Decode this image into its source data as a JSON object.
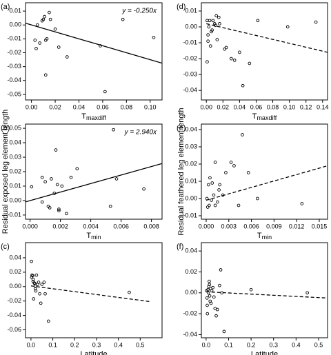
{
  "chart_data": [
    {
      "type": "scatter",
      "panel": "(a)",
      "annotation": "y = -0.250x",
      "x_label": {
        "main": "T",
        "sub": "maxdiff"
      },
      "color": "#000000",
      "x": [
        0.003,
        0.004,
        0.005,
        0.007,
        0.009,
        0.01,
        0.011,
        0.012,
        0.013,
        0.012,
        0.015,
        0.016,
        0.02,
        0.023,
        0.03,
        0.058,
        0.062,
        0.077,
        0.103
      ],
      "y": [
        -0.011,
        -0.017,
        0.0,
        -0.013,
        0.003,
        0.004,
        0.006,
        -0.011,
        -0.01,
        -0.036,
        0.009,
        0.004,
        -0.003,
        -0.016,
        -0.023,
        -0.015,
        -0.048,
        0.004,
        -0.009
      ],
      "fit": {
        "x": [
          -0.005,
          0.11
        ],
        "y": [
          0.0013,
          -0.0275
        ],
        "dashed": false
      },
      "xlim": [
        -0.005,
        0.11
      ],
      "ylim": [
        -0.054,
        0.016
      ],
      "xticks": [
        {
          "value": 0,
          "label": "0.00"
        },
        {
          "value": 0.02,
          "label": "0.02"
        },
        {
          "value": 0.04,
          "label": "0.04"
        },
        {
          "value": 0.06,
          "label": "0.06"
        },
        {
          "value": 0.08,
          "label": "0.08"
        },
        {
          "value": 0.1,
          "label": "0.10"
        }
      ],
      "yticks": [
        {
          "value": 0.01,
          "label": "0.01"
        },
        {
          "value": 0,
          "label": "0.00"
        },
        {
          "value": -0.01,
          "label": "-0.01"
        },
        {
          "value": -0.02,
          "label": "-0.02"
        },
        {
          "value": -0.03,
          "label": "-0.03"
        },
        {
          "value": -0.04,
          "label": "-0.04"
        },
        {
          "value": -0.05,
          "label": "-0.05"
        }
      ]
    },
    {
      "type": "scatter",
      "panel": "(b)",
      "annotation": "y = 2.940x",
      "x_label": {
        "main": "T",
        "sub": "min"
      },
      "ylabel": "Residual exposed leg element length",
      "color": "#000000",
      "x": [
        0.0001,
        0.0008,
        0.001,
        0.0008,
        0.0012,
        0.0013,
        0.0014,
        0.0016,
        0.0018,
        0.0017,
        0.0019,
        0.0019,
        0.0021,
        0.0024,
        0.0027,
        0.0031,
        0.0053,
        0.0055,
        0.0057,
        0.0075
      ],
      "y": [
        0.0095,
        0.016,
        0.013,
        -0.001,
        -0.004,
        -0.005,
        0.015,
        0.005,
        0.011,
        0.035,
        -0.006,
        -0.007,
        0.01,
        -0.009,
        0.016,
        0.022,
        -0.004,
        0.049,
        0.015,
        0.008
      ],
      "fit": {
        "x": [
          -0.0003,
          0.0087
        ],
        "y": [
          -0.0009,
          0.0256
        ],
        "dashed": false
      },
      "xlim": [
        -0.0003,
        0.0087
      ],
      "ylim": [
        -0.0129,
        0.0529
      ],
      "xticks": [
        {
          "value": 0,
          "label": "0.000"
        },
        {
          "value": 0.002,
          "label": "0.002"
        },
        {
          "value": 0.004,
          "label": "0.004"
        },
        {
          "value": 0.006,
          "label": "0.006"
        },
        {
          "value": 0.008,
          "label": "0.008"
        }
      ],
      "yticks": [
        {
          "value": 0.05,
          "label": "0.05"
        },
        {
          "value": 0.04,
          "label": "0.04"
        },
        {
          "value": 0.03,
          "label": "0.03"
        },
        {
          "value": 0.02,
          "label": "0.02"
        },
        {
          "value": 0.01,
          "label": "0.01"
        },
        {
          "value": 0,
          "label": "0.00"
        },
        {
          "value": -0.01,
          "label": "-0.01"
        }
      ]
    },
    {
      "type": "scatter",
      "panel": "(c)",
      "x_label": {
        "main": "Latitude"
      },
      "color": "#000000",
      "x": [
        0.002,
        0.003,
        0.005,
        0.008,
        0.01,
        0.01,
        0.012,
        0.015,
        0.018,
        0.02,
        0.02,
        0.022,
        0.025,
        0.03,
        0.035,
        0.04,
        0.045,
        0.05,
        0.06,
        0.065,
        0.08,
        0.45
      ],
      "y": [
        0.035,
        0.013,
        0.016,
        0.015,
        0.01,
        0.007,
        -0.017,
        0.005,
        0.004,
        0.001,
        -0.003,
        -0.006,
        0.016,
        0.003,
        0.006,
        -0.01,
        -0.023,
        0.003,
        0.006,
        -0.01,
        -0.048,
        -0.008
      ],
      "fit": {
        "x": [
          0,
          0.55
        ],
        "y": [
          0.001,
          -0.021
        ],
        "dashed": true
      },
      "xlim": [
        -0.025,
        0.6
      ],
      "ylim": [
        -0.071,
        0.061
      ],
      "xticks": [
        {
          "value": 0,
          "label": "0.0"
        },
        0.1,
        0.2,
        0.3,
        0.4,
        0.5
      ],
      "yticks": [
        {
          "value": 0.04,
          "label": "0.04"
        },
        {
          "value": 0.02,
          "label": "0.02"
        },
        {
          "value": 0,
          "label": "0.00"
        },
        {
          "value": -0.02,
          "label": "-0.02"
        },
        {
          "value": -0.04,
          "label": "-0.04"
        },
        {
          "value": -0.06,
          "label": "-0.06"
        }
      ]
    },
    {
      "type": "scatter",
      "panel": "(d)",
      "x_label": {
        "main": "T",
        "sub": "maxdiff"
      },
      "color": "#000000",
      "x": [
        0.001,
        0.001,
        0.002,
        0.002,
        0.003,
        0.004,
        0.005,
        0.006,
        0.007,
        0.008,
        0.01,
        0.011,
        0.012,
        0.013,
        0.015,
        0.016,
        0.022,
        0.024,
        0.03,
        0.034,
        0.04,
        0.044,
        0.052,
        0.062,
        0.098,
        0.132
      ],
      "y": [
        0.004,
        -0.022,
        -0.005,
        -0.009,
        0.0,
        0.004,
        -0.012,
        -0.003,
        -0.002,
        0.004,
        0.002,
        0.001,
        0.007,
        -0.008,
        0.006,
        0.002,
        -0.014,
        -0.013,
        -0.02,
        -0.021,
        -0.016,
        -0.037,
        -0.023,
        0.004,
        0.0,
        0.003
      ],
      "fit": {
        "x": [
          0,
          0.146
        ],
        "y": [
          0.002,
          -0.016
        ],
        "dashed": true
      },
      "xlim": [
        -0.006,
        0.146
      ],
      "ylim": [
        -0.046,
        0.0152
      ],
      "xticks": [
        {
          "value": 0,
          "label": "0.00"
        },
        {
          "value": 0.02,
          "label": "0.02"
        },
        {
          "value": 0.04,
          "label": "0.04"
        },
        {
          "value": 0.06,
          "label": "0.06"
        },
        {
          "value": 0.08,
          "label": "0.08"
        },
        {
          "value": 0.1,
          "label": "0.10"
        },
        {
          "value": 0.12,
          "label": "0.12"
        },
        {
          "value": 0.14,
          "label": "0.14"
        }
      ],
      "yticks": [
        {
          "value": 0.01,
          "label": "0.01"
        },
        {
          "value": 0,
          "label": "0.00"
        },
        {
          "value": -0.01,
          "label": "-0.01"
        },
        {
          "value": -0.02,
          "label": "-0.02"
        },
        {
          "value": -0.03,
          "label": "-0.03"
        },
        {
          "value": -0.04,
          "label": "-0.04"
        }
      ]
    },
    {
      "type": "scatter",
      "panel": "(e)",
      "x_label": {
        "main": "T",
        "sub": "min"
      },
      "ylabel": "Residual feathered leg element length",
      "color": "#000000",
      "x": [
        0.0001,
        0.0002,
        0.0003,
        0.0004,
        0.0005,
        0.0007,
        0.0008,
        0.001,
        0.0012,
        0.0012,
        0.0015,
        0.0017,
        0.0018,
        0.0022,
        0.0026,
        0.0033,
        0.0037,
        0.0043,
        0.0048,
        0.0056,
        0.0068,
        0.0127
      ],
      "y": [
        0.0,
        -0.005,
        0.008,
        -0.004,
        0.012,
        -0.001,
        0.009,
        0.002,
        -0.004,
        0.021,
        -0.002,
        0.005,
        0.008,
        0.002,
        0.015,
        0.021,
        0.019,
        -0.004,
        0.037,
        0.015,
        0.0,
        -0.003
      ],
      "fit": {
        "x": [
          0,
          0.0161
        ],
        "y": [
          -0.001,
          0.019
        ],
        "dashed": true
      },
      "xlim": [
        -0.00064,
        0.0161
      ],
      "ylim": [
        -0.012,
        0.0432
      ],
      "xticks": [
        {
          "value": 0,
          "label": "0.000"
        },
        {
          "value": 0.003,
          "label": "0.003"
        },
        {
          "value": 0.006,
          "label": "0.006"
        },
        {
          "value": 0.009,
          "label": "0.009"
        },
        {
          "value": 0.012,
          "label": "0.012"
        },
        {
          "value": 0.015,
          "label": "0.015"
        }
      ],
      "yticks": [
        {
          "value": 0.04,
          "label": "0.04"
        },
        {
          "value": 0.03,
          "label": "0.03"
        },
        {
          "value": 0.02,
          "label": "0.02"
        },
        {
          "value": 0.01,
          "label": "0.01"
        },
        {
          "value": 0,
          "label": "0.00"
        },
        {
          "value": -0.01,
          "label": "-0.01"
        }
      ]
    },
    {
      "type": "scatter",
      "panel": "(f)",
      "x_label": {
        "main": "Latitude"
      },
      "color": "#000000",
      "x": [
        0.002,
        0.004,
        0.005,
        0.006,
        0.008,
        0.01,
        0.012,
        0.014,
        0.015,
        0.016,
        0.018,
        0.02,
        0.022,
        0.025,
        0.03,
        0.035,
        0.04,
        0.045,
        0.05,
        0.06,
        0.065,
        0.07,
        0.08,
        0.2,
        0.45
      ],
      "y": [
        0.002,
        -0.005,
        -0.012,
        -0.02,
        0.003,
        0.0,
        0.006,
        0.011,
        0.008,
        -0.003,
        -0.008,
        0.004,
        -0.01,
        0.002,
        0.005,
        -0.004,
        -0.015,
        -0.022,
        -0.016,
        0.007,
        0.022,
        0.0,
        -0.037,
        0.003,
        0.0
      ],
      "fit": {
        "x": [
          0,
          0.54
        ],
        "y": [
          0.001,
          -0.005
        ],
        "dashed": true
      },
      "xlim": [
        -0.021,
        0.54
      ],
      "ylim": [
        -0.043,
        0.048
      ],
      "xticks": [
        {
          "value": 0,
          "label": "0.0"
        },
        0.1,
        0.2,
        0.3,
        0.4,
        0.5
      ],
      "yticks": [
        {
          "value": 0.04,
          "label": "0.04"
        },
        {
          "value": 0.02,
          "label": "0.02"
        },
        {
          "value": 0,
          "label": "0.00"
        },
        {
          "value": -0.02,
          "label": "-0.02"
        },
        {
          "value": -0.04,
          "label": "-0.04"
        }
      ]
    }
  ]
}
